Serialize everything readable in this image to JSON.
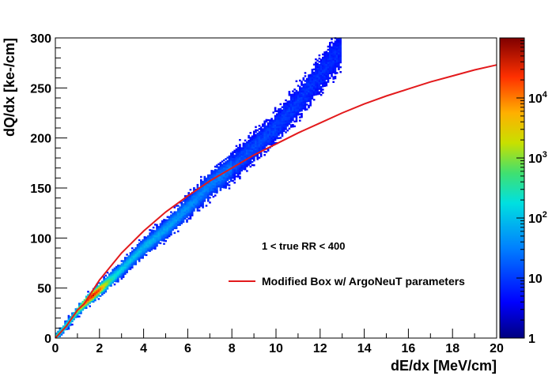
{
  "chart_data": {
    "type": "heatmap",
    "xlabel": "dE/dx [MeV/cm]",
    "ylabel": "dQ/dx [ke-/cm]",
    "xlim": [
      0,
      20
    ],
    "ylim": [
      0,
      300
    ],
    "x_ticks": [
      "0",
      "2",
      "4",
      "6",
      "8",
      "10",
      "12",
      "14",
      "16",
      "18",
      "20"
    ],
    "y_ticks": [
      "0",
      "50",
      "100",
      "150",
      "200",
      "250",
      "300"
    ],
    "colorbar": {
      "scale": "log",
      "range": [
        1,
        100000
      ],
      "tick_labels": [
        {
          "value": 1,
          "label": "1"
        },
        {
          "value": 10,
          "label": "10"
        },
        {
          "value": 100,
          "label": "10",
          "exp": "2"
        },
        {
          "value": 1000,
          "label": "10",
          "exp": "3"
        },
        {
          "value": 10000,
          "label": "10",
          "exp": "4"
        }
      ]
    },
    "annotation": "1 < true RR < 400",
    "legend": {
      "placement": "center-right",
      "entries": [
        {
          "name": "Modified Box w/ ArgoNeuT parameters",
          "color": "#e31a1c"
        }
      ]
    },
    "heatmap_band": {
      "description_points": [
        {
          "x": 0.0,
          "y": 0
        },
        {
          "x": 0.5,
          "y": 12
        },
        {
          "x": 1.0,
          "y": 26
        },
        {
          "x": 1.5,
          "y": 38
        },
        {
          "x": 2.0,
          "y": 48
        },
        {
          "x": 3.0,
          "y": 68
        },
        {
          "x": 4.0,
          "y": 90
        },
        {
          "x": 5.0,
          "y": 108
        },
        {
          "x": 6.0,
          "y": 130
        },
        {
          "x": 7.0,
          "y": 152
        },
        {
          "x": 8.0,
          "y": 170
        },
        {
          "x": 9.0,
          "y": 190
        },
        {
          "x": 10.0,
          "y": 210
        },
        {
          "x": 11.0,
          "y": 235
        },
        {
          "x": 12.0,
          "y": 262
        },
        {
          "x": 13.0,
          "y": 290
        }
      ],
      "peak": {
        "x": 1.7,
        "y": 42
      }
    },
    "series": [
      {
        "name": "Modified Box w/ ArgoNeuT parameters",
        "color": "#e31a1c",
        "x": [
          0,
          0.5,
          1.0,
          1.3,
          2,
          3,
          4,
          5,
          6,
          7,
          8,
          9,
          10,
          11,
          12,
          13,
          14,
          15,
          16,
          17,
          18,
          19,
          20
        ],
        "y": [
          0,
          12,
          28,
          34,
          58,
          85,
          107,
          126,
          142,
          157,
          170,
          183,
          194,
          205,
          215,
          225,
          234,
          242,
          249,
          256,
          262,
          268,
          273
        ]
      }
    ],
    "colors": {
      "frame": "#000000",
      "curve": "#e31a1c"
    }
  }
}
